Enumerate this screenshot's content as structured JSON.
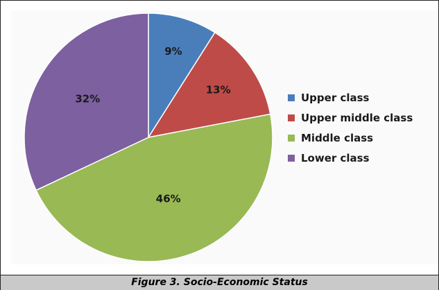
{
  "chart_data": {
    "type": "pie",
    "categories": [
      "Upper class",
      "Upper middle class",
      "Middle class",
      "Lower class"
    ],
    "values": [
      9,
      13,
      46,
      32
    ],
    "labels": [
      "9%",
      "13%",
      "46%",
      "32%"
    ],
    "colors": [
      "#4a7ebb",
      "#be4b48",
      "#98b954",
      "#7d60a0"
    ],
    "legend_position": "right",
    "title": ""
  },
  "figure": {
    "caption": "Figure 3. Socio-Economic Status"
  }
}
